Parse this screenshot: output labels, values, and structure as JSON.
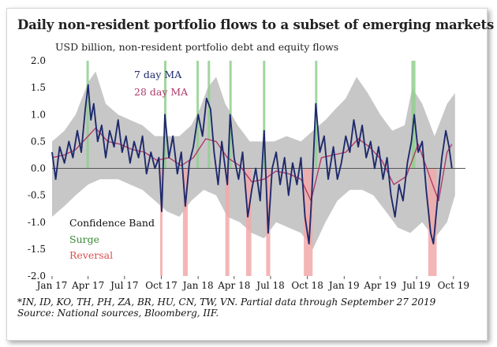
{
  "title": "Daily non-resident portfolio flows to a subset of emerging markets",
  "subtitle": "USD billion, non-resident portfolio debt and equity flows",
  "footnote": "*IN, ID, KO, TH, PH, ZA, BR, HU, CN, TW, VN. Partial data through September 27 2019",
  "source": "Source: National sources, Bloomberg, IIF.",
  "colors": {
    "ma7": "#1f2a6b",
    "ma28": "#b03a6a",
    "band": "#bdbdbd",
    "surge": "#90cf8e",
    "reversal": "#f1a9a9"
  },
  "chart_data": {
    "type": "line",
    "x_range": [
      "2017-01-01",
      "2019-10-31"
    ],
    "ylim": [
      -2.0,
      2.0
    ],
    "yticks": [
      "2.0",
      "1.5",
      "1.0",
      "0.5",
      "0.0",
      "-0.5",
      "-1.0",
      "-1.5",
      "-2.0"
    ],
    "ytick_values": [
      2.0,
      1.5,
      1.0,
      0.5,
      0.0,
      -0.5,
      -1.0,
      -1.5,
      -2.0
    ],
    "xticks": [
      {
        "label": "Jan 17",
        "date": "2017-01-01"
      },
      {
        "label": "Apr 17",
        "date": "2017-04-01"
      },
      {
        "label": "Jul 17",
        "date": "2017-07-01"
      },
      {
        "label": "Oct 17",
        "date": "2017-10-01"
      },
      {
        "label": "Jan 18",
        "date": "2018-01-01"
      },
      {
        "label": "Apr 18",
        "date": "2018-04-01"
      },
      {
        "label": "Jul 18",
        "date": "2018-07-01"
      },
      {
        "label": "Oct 18",
        "date": "2018-10-01"
      },
      {
        "label": "Jan 19",
        "date": "2019-01-01"
      },
      {
        "label": "Apr 19",
        "date": "2019-04-01"
      },
      {
        "label": "Jul 19",
        "date": "2019-07-01"
      },
      {
        "label": "Oct 19",
        "date": "2019-10-01"
      }
    ],
    "legend": {
      "ma7": "7 day MA",
      "ma28": "28 day MA",
      "band": "Confidence Band",
      "surge": "Surge",
      "reversal": "Reversal"
    },
    "surges": [
      [
        "2017-03-28",
        "2017-04-03"
      ],
      [
        "2017-10-08",
        "2017-10-14"
      ],
      [
        "2017-12-28",
        "2018-01-03"
      ],
      [
        "2018-01-25",
        "2018-01-31"
      ],
      [
        "2018-03-20",
        "2018-03-26"
      ],
      [
        "2018-06-12",
        "2018-06-18"
      ],
      [
        "2018-10-20",
        "2018-10-26"
      ],
      [
        "2019-06-18",
        "2019-06-28"
      ]
    ],
    "reversals": [
      [
        "2017-09-28",
        "2017-10-04"
      ],
      [
        "2017-11-24",
        "2017-12-06"
      ],
      [
        "2018-03-10",
        "2018-03-20"
      ],
      [
        "2018-05-01",
        "2018-05-14"
      ],
      [
        "2018-06-20",
        "2018-06-30"
      ],
      [
        "2018-09-22",
        "2018-10-14"
      ],
      [
        "2019-07-30",
        "2019-08-20"
      ]
    ],
    "band_upper": [
      [
        "2017-01-01",
        0.5
      ],
      [
        "2017-02-01",
        0.7
      ],
      [
        "2017-03-01",
        1.0
      ],
      [
        "2017-04-01",
        1.6
      ],
      [
        "2017-04-20",
        1.8
      ],
      [
        "2017-05-15",
        1.2
      ],
      [
        "2017-06-15",
        1.0
      ],
      [
        "2017-07-15",
        0.9
      ],
      [
        "2017-08-15",
        0.8
      ],
      [
        "2017-09-15",
        0.6
      ],
      [
        "2017-10-15",
        0.6
      ],
      [
        "2017-11-15",
        0.6
      ],
      [
        "2017-12-15",
        0.8
      ],
      [
        "2018-01-05",
        1.1
      ],
      [
        "2018-01-25",
        1.5
      ],
      [
        "2018-02-15",
        1.7
      ],
      [
        "2018-03-10",
        1.2
      ],
      [
        "2018-04-10",
        0.8
      ],
      [
        "2018-05-10",
        0.5
      ],
      [
        "2018-06-10",
        0.5
      ],
      [
        "2018-07-10",
        0.5
      ],
      [
        "2018-08-10",
        0.6
      ],
      [
        "2018-09-15",
        0.5
      ],
      [
        "2018-10-15",
        0.7
      ],
      [
        "2018-11-15",
        0.9
      ],
      [
        "2018-12-10",
        1.1
      ],
      [
        "2019-01-05",
        1.3
      ],
      [
        "2019-02-01",
        1.7
      ],
      [
        "2019-03-01",
        1.4
      ],
      [
        "2019-04-01",
        1.0
      ],
      [
        "2019-05-01",
        0.7
      ],
      [
        "2019-06-01",
        0.8
      ],
      [
        "2019-06-20",
        1.5
      ],
      [
        "2019-07-15",
        1.2
      ],
      [
        "2019-08-15",
        0.6
      ],
      [
        "2019-09-15",
        1.2
      ],
      [
        "2019-10-05",
        1.4
      ]
    ],
    "band_lower": [
      [
        "2017-01-01",
        -0.9
      ],
      [
        "2017-02-01",
        -0.7
      ],
      [
        "2017-03-01",
        -0.5
      ],
      [
        "2017-04-01",
        -0.3
      ],
      [
        "2017-05-01",
        -0.2
      ],
      [
        "2017-06-15",
        -0.2
      ],
      [
        "2017-07-15",
        -0.3
      ],
      [
        "2017-08-15",
        -0.4
      ],
      [
        "2017-09-15",
        -0.6
      ],
      [
        "2017-10-15",
        -0.8
      ],
      [
        "2017-11-15",
        -0.9
      ],
      [
        "2017-12-15",
        -0.6
      ],
      [
        "2018-01-15",
        -0.4
      ],
      [
        "2018-02-15",
        -0.5
      ],
      [
        "2018-03-15",
        -0.9
      ],
      [
        "2018-04-15",
        -1.0
      ],
      [
        "2018-05-15",
        -1.2
      ],
      [
        "2018-06-15",
        -1.3
      ],
      [
        "2018-07-15",
        -1.0
      ],
      [
        "2018-08-15",
        -1.1
      ],
      [
        "2018-09-15",
        -1.2
      ],
      [
        "2018-10-15",
        -1.5
      ],
      [
        "2018-11-15",
        -1.0
      ],
      [
        "2018-12-15",
        -0.6
      ],
      [
        "2019-01-15",
        -0.4
      ],
      [
        "2019-02-15",
        -0.4
      ],
      [
        "2019-03-15",
        -0.5
      ],
      [
        "2019-04-15",
        -0.8
      ],
      [
        "2019-05-15",
        -1.1
      ],
      [
        "2019-06-15",
        -1.2
      ],
      [
        "2019-07-15",
        -1.0
      ],
      [
        "2019-08-15",
        -1.3
      ],
      [
        "2019-09-15",
        -1.0
      ],
      [
        "2019-10-05",
        -0.5
      ]
    ],
    "series": [
      {
        "name": "7 day MA",
        "key": "ma7",
        "points": [
          [
            "2017-01-01",
            0.3
          ],
          [
            "2017-01-10",
            -0.2
          ],
          [
            "2017-01-20",
            0.4
          ],
          [
            "2017-02-01",
            0.1
          ],
          [
            "2017-02-12",
            0.5
          ],
          [
            "2017-02-22",
            0.2
          ],
          [
            "2017-03-05",
            0.7
          ],
          [
            "2017-03-15",
            0.3
          ],
          [
            "2017-03-25",
            1.1
          ],
          [
            "2017-04-01",
            1.55
          ],
          [
            "2017-04-08",
            0.9
          ],
          [
            "2017-04-15",
            1.2
          ],
          [
            "2017-04-25",
            0.5
          ],
          [
            "2017-05-05",
            0.8
          ],
          [
            "2017-05-15",
            0.2
          ],
          [
            "2017-05-25",
            0.7
          ],
          [
            "2017-06-05",
            0.4
          ],
          [
            "2017-06-15",
            0.9
          ],
          [
            "2017-06-25",
            0.3
          ],
          [
            "2017-07-05",
            0.6
          ],
          [
            "2017-07-15",
            0.1
          ],
          [
            "2017-07-25",
            0.5
          ],
          [
            "2017-08-05",
            0.2
          ],
          [
            "2017-08-15",
            0.6
          ],
          [
            "2017-08-25",
            -0.1
          ],
          [
            "2017-09-05",
            0.3
          ],
          [
            "2017-09-15",
            0.0
          ],
          [
            "2017-09-25",
            0.2
          ],
          [
            "2017-10-02",
            -0.8
          ],
          [
            "2017-10-10",
            1.0
          ],
          [
            "2017-10-20",
            0.2
          ],
          [
            "2017-10-30",
            0.6
          ],
          [
            "2017-11-10",
            -0.1
          ],
          [
            "2017-11-20",
            0.3
          ],
          [
            "2017-11-30",
            -0.7
          ],
          [
            "2017-12-10",
            0.1
          ],
          [
            "2017-12-20",
            0.4
          ],
          [
            "2018-01-01",
            1.0
          ],
          [
            "2018-01-12",
            0.6
          ],
          [
            "2018-01-22",
            1.3
          ],
          [
            "2018-02-01",
            1.1
          ],
          [
            "2018-02-10",
            0.3
          ],
          [
            "2018-02-20",
            -0.3
          ],
          [
            "2018-03-01",
            0.5
          ],
          [
            "2018-03-15",
            -0.3
          ],
          [
            "2018-03-22",
            1.0
          ],
          [
            "2018-04-01",
            0.2
          ],
          [
            "2018-04-12",
            -0.2
          ],
          [
            "2018-04-22",
            0.3
          ],
          [
            "2018-05-05",
            -0.9
          ],
          [
            "2018-05-15",
            -0.4
          ],
          [
            "2018-05-25",
            0.0
          ],
          [
            "2018-06-05",
            -0.6
          ],
          [
            "2018-06-15",
            0.7
          ],
          [
            "2018-06-25",
            -1.2
          ],
          [
            "2018-07-05",
            0.0
          ],
          [
            "2018-07-15",
            0.3
          ],
          [
            "2018-07-25",
            -0.3
          ],
          [
            "2018-08-05",
            0.2
          ],
          [
            "2018-08-15",
            -0.5
          ],
          [
            "2018-08-25",
            0.1
          ],
          [
            "2018-09-05",
            -0.3
          ],
          [
            "2018-09-15",
            0.2
          ],
          [
            "2018-09-25",
            -0.9
          ],
          [
            "2018-10-05",
            -1.4
          ],
          [
            "2018-10-12",
            -0.5
          ],
          [
            "2018-10-22",
            1.2
          ],
          [
            "2018-11-01",
            0.3
          ],
          [
            "2018-11-12",
            0.6
          ],
          [
            "2018-11-22",
            -0.2
          ],
          [
            "2018-12-05",
            0.4
          ],
          [
            "2018-12-15",
            -0.2
          ],
          [
            "2018-12-25",
            0.1
          ],
          [
            "2019-01-05",
            0.6
          ],
          [
            "2019-01-15",
            0.3
          ],
          [
            "2019-01-25",
            0.9
          ],
          [
            "2019-02-05",
            0.4
          ],
          [
            "2019-02-15",
            0.8
          ],
          [
            "2019-02-25",
            0.2
          ],
          [
            "2019-03-08",
            0.5
          ],
          [
            "2019-03-18",
            0.0
          ],
          [
            "2019-03-28",
            0.4
          ],
          [
            "2019-04-08",
            -0.2
          ],
          [
            "2019-04-18",
            0.2
          ],
          [
            "2019-04-28",
            -0.5
          ],
          [
            "2019-05-08",
            -0.9
          ],
          [
            "2019-05-18",
            -0.3
          ],
          [
            "2019-05-28",
            -0.6
          ],
          [
            "2019-06-08",
            0.1
          ],
          [
            "2019-06-18",
            0.5
          ],
          [
            "2019-06-25",
            1.0
          ],
          [
            "2019-07-05",
            0.3
          ],
          [
            "2019-07-15",
            0.5
          ],
          [
            "2019-07-25",
            -0.4
          ],
          [
            "2019-08-05",
            -1.2
          ],
          [
            "2019-08-12",
            -1.4
          ],
          [
            "2019-08-22",
            -0.6
          ],
          [
            "2019-09-02",
            0.2
          ],
          [
            "2019-09-12",
            0.7
          ],
          [
            "2019-09-20",
            0.4
          ],
          [
            "2019-09-27",
            0.0
          ]
        ]
      },
      {
        "name": "28 day MA",
        "key": "ma28",
        "points": [
          [
            "2017-01-01",
            0.2
          ],
          [
            "2017-02-01",
            0.25
          ],
          [
            "2017-03-01",
            0.35
          ],
          [
            "2017-04-01",
            0.6
          ],
          [
            "2017-04-20",
            0.75
          ],
          [
            "2017-05-20",
            0.5
          ],
          [
            "2017-06-20",
            0.45
          ],
          [
            "2017-07-20",
            0.35
          ],
          [
            "2017-08-20",
            0.3
          ],
          [
            "2017-09-20",
            0.15
          ],
          [
            "2017-10-20",
            0.2
          ],
          [
            "2017-11-20",
            0.05
          ],
          [
            "2017-12-20",
            0.2
          ],
          [
            "2018-01-20",
            0.55
          ],
          [
            "2018-02-15",
            0.5
          ],
          [
            "2018-03-15",
            0.2
          ],
          [
            "2018-04-15",
            0.05
          ],
          [
            "2018-05-15",
            -0.25
          ],
          [
            "2018-06-15",
            -0.2
          ],
          [
            "2018-07-15",
            -0.05
          ],
          [
            "2018-08-15",
            -0.1
          ],
          [
            "2018-09-15",
            -0.2
          ],
          [
            "2018-10-10",
            -0.6
          ],
          [
            "2018-11-05",
            0.2
          ],
          [
            "2018-12-05",
            0.25
          ],
          [
            "2019-01-05",
            0.3
          ],
          [
            "2019-02-05",
            0.55
          ],
          [
            "2019-03-05",
            0.4
          ],
          [
            "2019-04-05",
            0.15
          ],
          [
            "2019-05-05",
            -0.3
          ],
          [
            "2019-06-05",
            -0.15
          ],
          [
            "2019-07-05",
            0.45
          ],
          [
            "2019-08-05",
            -0.2
          ],
          [
            "2019-08-25",
            -0.6
          ],
          [
            "2019-09-15",
            0.3
          ],
          [
            "2019-09-27",
            0.45
          ]
        ]
      }
    ]
  }
}
